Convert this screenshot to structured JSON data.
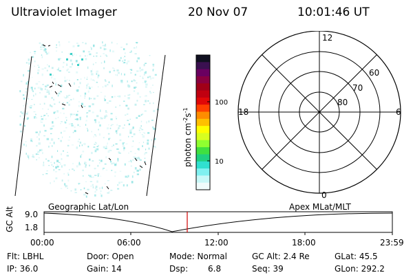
{
  "header": {
    "instrument": "Ultraviolet Imager",
    "date": "20 Nov 07",
    "time": "10:01:46 UT"
  },
  "colorbar": {
    "label": "photon cm",
    "label_sup1": "-2",
    "label_mid": "s",
    "label_sup2": "-1",
    "ticks": [
      "100",
      "10"
    ],
    "colors": [
      "#101020",
      "#3a1050",
      "#6a0060",
      "#8a0040",
      "#a00018",
      "#c00010",
      "#e00808",
      "#ff4000",
      "#ff8c00",
      "#ffc000",
      "#ffff00",
      "#d8ff20",
      "#90ff30",
      "#40e040",
      "#20d080",
      "#30e0d0",
      "#80f0f0",
      "#c8f8f8",
      "#f0fcfc"
    ]
  },
  "polar_plot": {
    "mlt_labels": [
      "12",
      "18",
      "6",
      "0"
    ],
    "lat_labels": [
      "60",
      "70",
      "80"
    ]
  },
  "track": {
    "y_axis_label": "GC Alt",
    "y_ticks": [
      "9.0",
      "1.8"
    ],
    "left_title": "Geographic Lat/Lon",
    "right_title": "Apex  MLat/MLT",
    "x_ticks": [
      "00:00",
      "06:00",
      "12:00",
      "18:00",
      "23:59"
    ]
  },
  "status": {
    "filter": "Flt: LBHL",
    "ip": "IP: 36.0",
    "door": "Door: Open",
    "gain": "Gain: 14",
    "mode": "Mode: Normal",
    "dsp_label": "Dsp:",
    "dsp_value": "6.8",
    "gc_alt": "GC Alt: 2.4 Re",
    "seq": "Seq: 39",
    "glat": "GLat:  45.5",
    "glon": "GLon: 292.2"
  }
}
